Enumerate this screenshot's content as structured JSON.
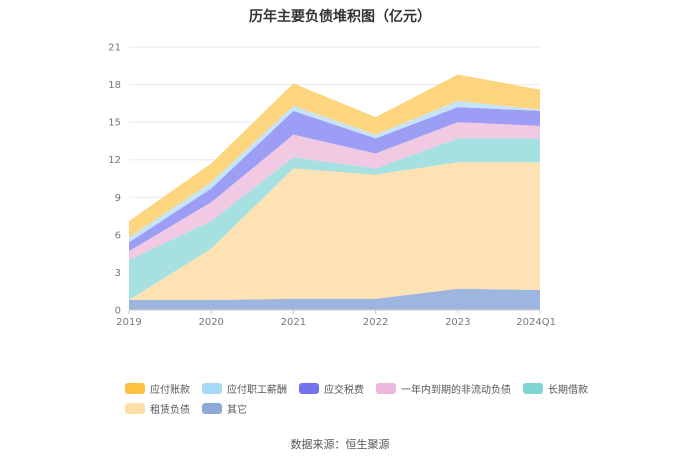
{
  "chart_data": {
    "type": "area",
    "stacked": true,
    "title": "历年主要负债堆积图（亿元）",
    "categories": [
      "2019",
      "2020",
      "2021",
      "2022",
      "2023",
      "2024Q1"
    ],
    "y_ticks": [
      "0",
      "3",
      "6",
      "9",
      "12",
      "15",
      "18",
      "21"
    ],
    "ylim": [
      0,
      21
    ],
    "grid": true,
    "legend_position": "bottom",
    "series": [
      {
        "name": "其它",
        "color": "#9db6e0",
        "values": [
          0.8,
          0.8,
          0.9,
          0.9,
          1.7,
          1.6
        ]
      },
      {
        "name": "租赁负债",
        "color": "#fde2b3",
        "values": [
          0.0,
          4.1,
          10.4,
          9.9,
          10.1,
          10.2
        ]
      },
      {
        "name": "长期借款",
        "color": "#a6e0e0",
        "values": [
          3.2,
          2.2,
          0.9,
          0.5,
          1.9,
          1.9
        ]
      },
      {
        "name": "一年内到期的非流动负债",
        "color": "#f1c9e3",
        "values": [
          0.7,
          1.5,
          1.8,
          1.2,
          1.3,
          1.0
        ]
      },
      {
        "name": "应交税费",
        "color": "#9c9df5",
        "values": [
          0.7,
          1.1,
          1.9,
          1.2,
          1.2,
          1.2
        ]
      },
      {
        "name": "应付职工薪酬",
        "color": "#c5e4f7",
        "values": [
          0.4,
          0.5,
          0.4,
          0.3,
          0.5,
          0.1
        ]
      },
      {
        "name": "应付账款",
        "color": "#fed57f",
        "values": [
          1.3,
          1.5,
          1.8,
          1.4,
          2.1,
          1.6
        ]
      }
    ]
  },
  "legend": {
    "row1": [
      {
        "label": "应付账款",
        "color": "#fbc13f"
      },
      {
        "label": "应付职工薪酬",
        "color": "#a6daf7"
      },
      {
        "label": "应交税费",
        "color": "#7373ee"
      },
      {
        "label": "一年内到期的非流动负债",
        "color": "#ecb7dd"
      },
      {
        "label": "长期借款",
        "color": "#7ed6d3"
      }
    ],
    "row2": [
      {
        "label": "租赁负债",
        "color": "#fddfa5"
      },
      {
        "label": "其它",
        "color": "#8ea8d8"
      }
    ]
  },
  "source": "数据来源：恒生聚源"
}
